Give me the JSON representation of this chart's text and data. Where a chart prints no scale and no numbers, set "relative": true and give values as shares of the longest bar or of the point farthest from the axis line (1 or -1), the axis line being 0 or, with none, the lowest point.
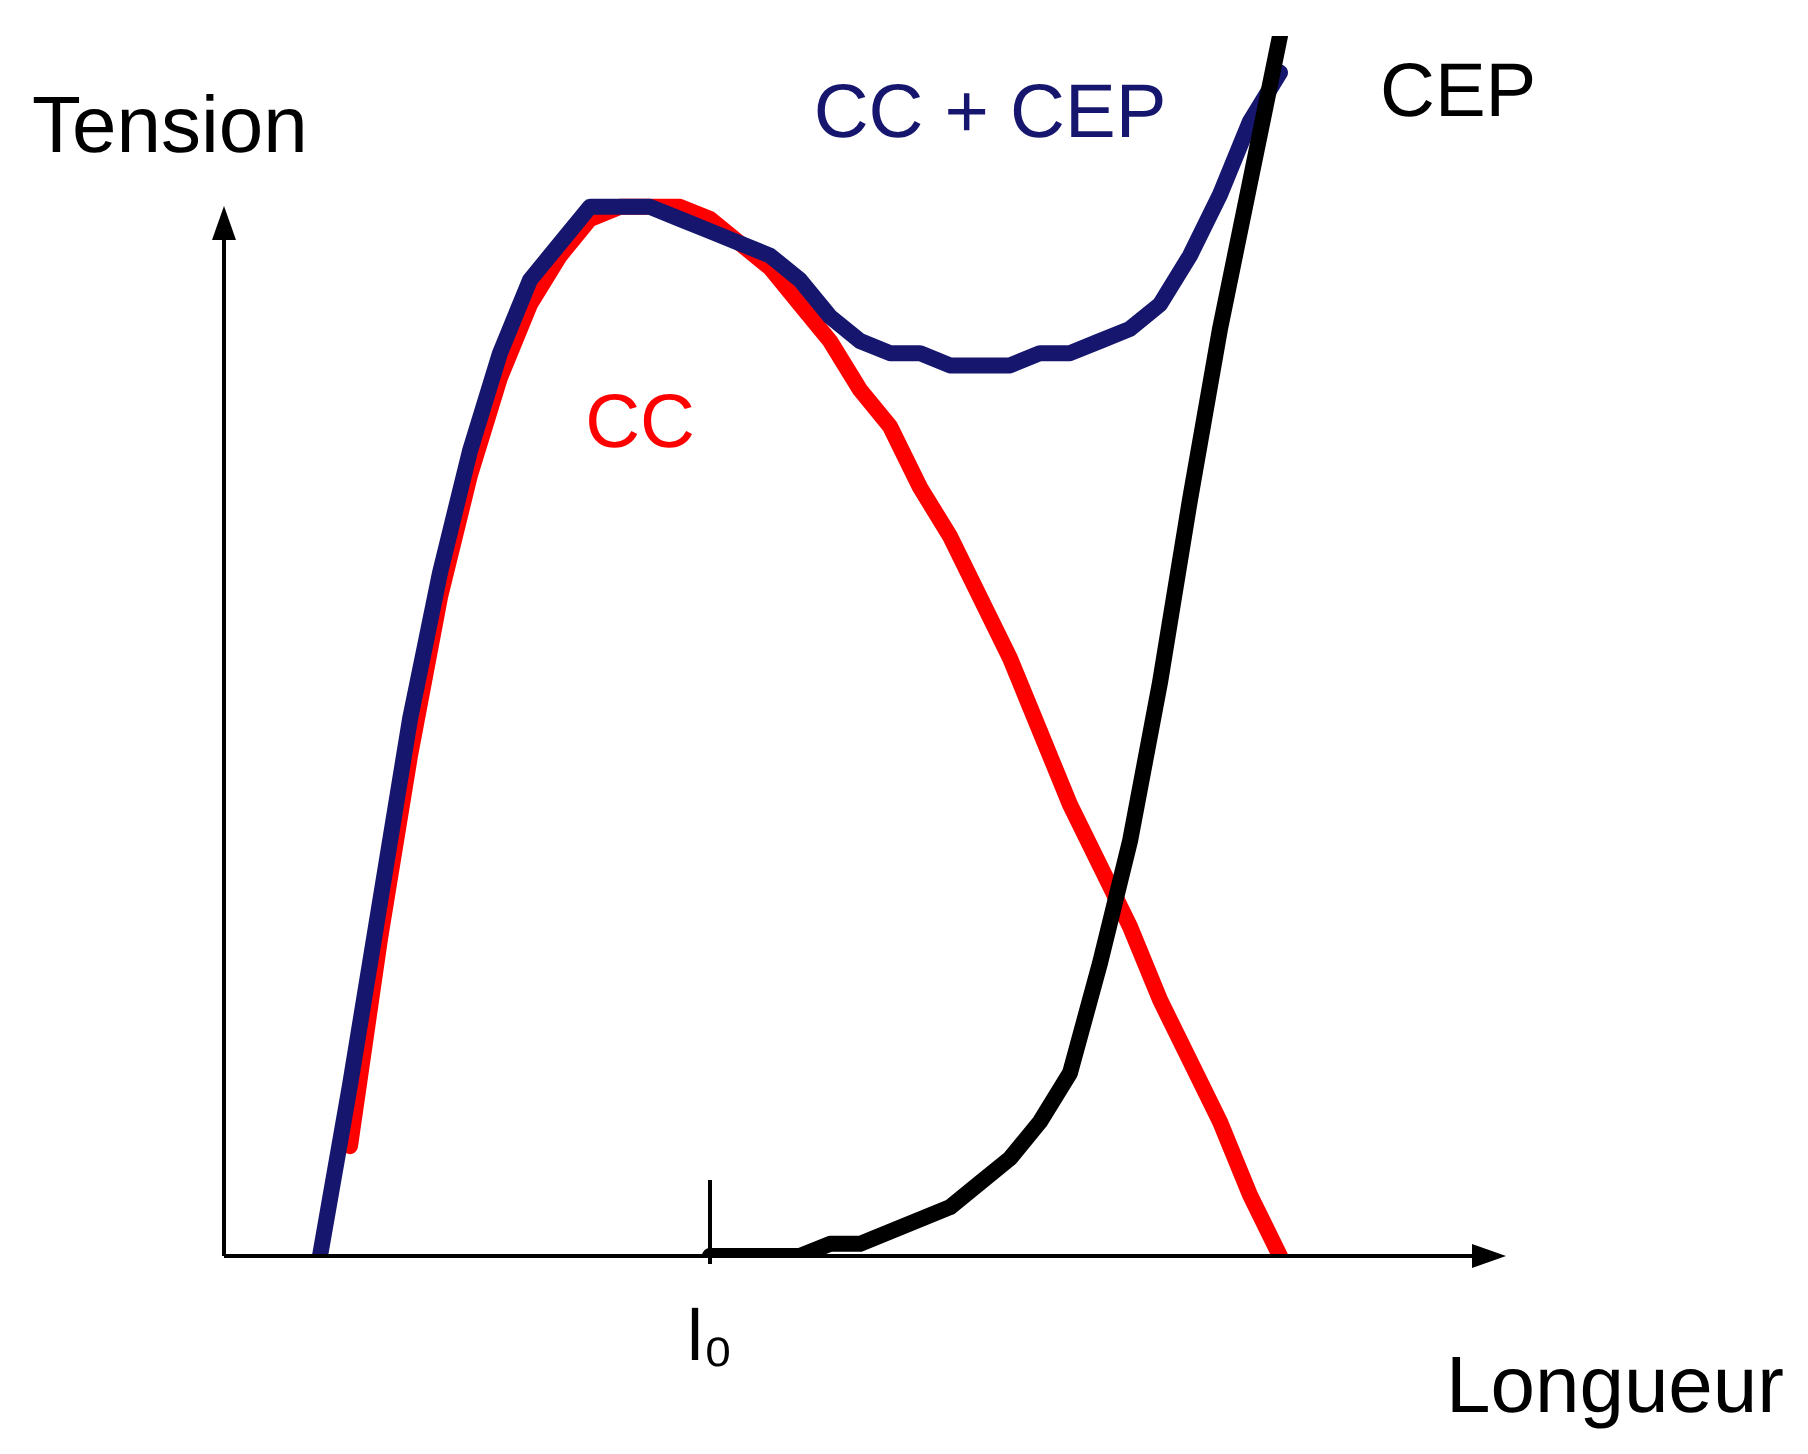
{
  "chart_data": {
    "type": "line",
    "annotations": [
      "l₀"
    ],
    "relative": true,
    "xlabel": "Longueur",
    "ylabel": "Tension",
    "marker": "none",
    "line_style": "solid",
    "categories": [
      null,
      null,
      null,
      null,
      null,
      null,
      null,
      null,
      null,
      null,
      null,
      null,
      null,
      null,
      null,
      null,
      null,
      null,
      null,
      null,
      null,
      null,
      null,
      null,
      null,
      null,
      null,
      null,
      null,
      null,
      null,
      null,
      null,
      null,
      null,
      null,
      null,
      null,
      null,
      null,
      null,
      null,
      null
    ],
    "series": [
      {
        "name": "CC",
        "color": "#ff0000",
        "values": [
          null,
          null,
          null,
          null,
          0.09,
          0.26,
          0.41,
          0.54,
          0.64,
          0.72,
          0.78,
          0.82,
          0.85,
          0.86,
          0.86,
          0.86,
          0.85,
          0.83,
          0.81,
          0.78,
          0.75,
          0.71,
          0.68,
          0.63,
          0.59,
          0.54,
          0.49,
          0.43,
          0.37,
          0.32,
          0.27,
          0.21,
          0.16,
          0.11,
          0.05,
          0,
          null,
          null,
          null,
          null,
          null,
          null,
          null
        ]
      },
      {
        "name": "CC + CEP",
        "color": "#16166e",
        "values": [
          null,
          null,
          null,
          0,
          0.14,
          0.29,
          0.44,
          0.56,
          0.66,
          0.74,
          0.8,
          0.83,
          0.86,
          0.86,
          0.86,
          0.85,
          0.84,
          0.83,
          0.82,
          0.8,
          0.77,
          0.75,
          0.74,
          0.74,
          0.73,
          0.73,
          0.73,
          0.74,
          0.74,
          0.75,
          0.76,
          0.78,
          0.82,
          0.87,
          0.93,
          0.97,
          null,
          null,
          null,
          null,
          null,
          null,
          null
        ]
      },
      {
        "name": "CEP",
        "color": "#000000",
        "values": [
          null,
          null,
          null,
          null,
          null,
          null,
          null,
          null,
          null,
          null,
          null,
          null,
          null,
          null,
          null,
          null,
          0,
          0,
          0,
          0,
          0.01,
          0.01,
          0.02,
          0.03,
          0.04,
          0.06,
          0.08,
          0.11,
          0.15,
          0.24,
          0.34,
          0.47,
          0.62,
          0.76,
          0.88,
          1,
          null,
          null,
          null,
          null,
          null,
          null,
          null
        ]
      }
    ]
  }
}
